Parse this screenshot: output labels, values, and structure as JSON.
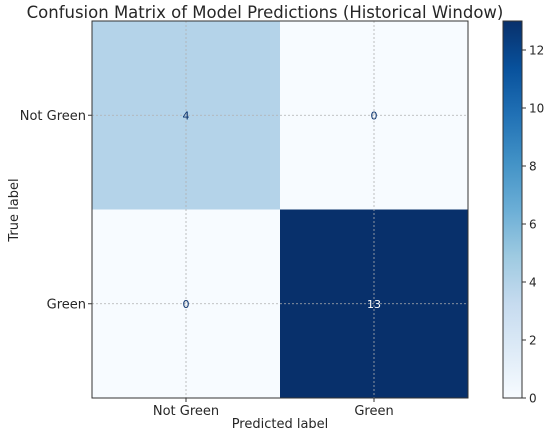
{
  "chart_data": {
    "type": "heatmap",
    "title": "Confusion Matrix of Model Predictions (Historical Window)",
    "xlabel": "Predicted label",
    "ylabel": "True label",
    "x_categories": [
      "Not Green",
      "Green"
    ],
    "y_categories": [
      "Not Green",
      "Green"
    ],
    "values": [
      [
        4,
        0
      ],
      [
        0,
        13
      ]
    ],
    "colormap": "Blues",
    "color_range": [
      0,
      13
    ],
    "colorbar_ticks": [
      0,
      2,
      4,
      6,
      8,
      10,
      12
    ],
    "grid": true
  }
}
